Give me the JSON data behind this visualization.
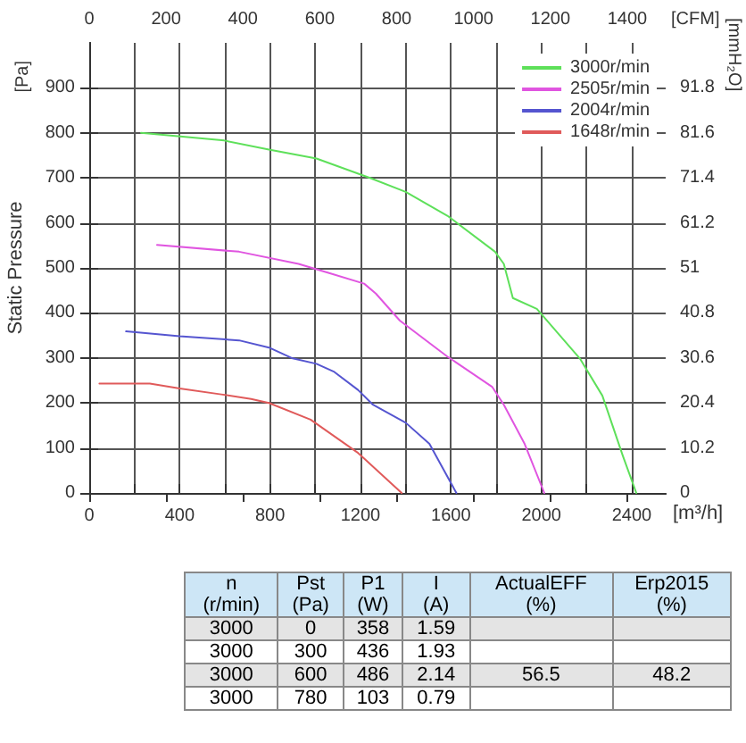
{
  "chart_data": [
    {
      "type": "line",
      "xlabel": "[m³/h]",
      "ylabel": "Static Pressure",
      "y2label": "[mmH₂O]",
      "x2label": "[CFM]",
      "annotations": [
        "[Pa]"
      ],
      "xlim": [
        0,
        2550
      ],
      "xticks": [
        0,
        {
          "value": 200,
          "label": null
        },
        400,
        {
          "value": 600,
          "label": null
        },
        800,
        {
          "value": 1000,
          "label": null
        },
        1200,
        {
          "value": 1400,
          "label": null
        },
        1600,
        {
          "value": 1800,
          "label": null
        },
        2000,
        {
          "value": 2200,
          "label": null
        },
        2400
      ],
      "x2lim": [
        0,
        1500
      ],
      "x2ticks": [
        0,
        200,
        400,
        600,
        800,
        1000,
        1200,
        1400
      ],
      "ylim": [
        0,
        1000
      ],
      "yticks": [
        0,
        100,
        200,
        300,
        400,
        500,
        600,
        700,
        800,
        900
      ],
      "y2lim": [
        0,
        102
      ],
      "y2ticks": [
        0,
        10.2,
        20.4,
        30.6,
        40.8,
        51,
        61.2,
        71.4,
        81.6,
        91.8
      ],
      "grid": true,
      "legend": "top right",
      "marker": "none",
      "line_style": "solid",
      "series": [
        {
          "name": "3000r/min",
          "color": "#5ee05a",
          "x": [
            229,
            597,
            795,
            1005,
            1242,
            1400,
            1584,
            1795,
            1834,
            1874,
            1980,
            2170,
            2270,
            2360,
            2420
          ],
          "values": [
            800,
            783,
            763,
            743,
            700,
            669,
            616,
            536,
            509,
            433,
            409,
            299,
            216,
            83,
            0
          ]
        },
        {
          "name": "2505r/min",
          "color": "#e055e0",
          "x": [
            300,
            663,
            926,
            1058,
            1216,
            1268,
            1374,
            1584,
            1782,
            1834,
            1926,
            2013
          ],
          "values": [
            551,
            536,
            509,
            489,
            465,
            443,
            383,
            303,
            236,
            196,
            109,
            0
          ]
        },
        {
          "name": "2004r/min",
          "color": "#5555d0",
          "x": [
            163,
            400,
            663,
            795,
            900,
            1005,
            1084,
            1189,
            1255,
            1400,
            1505,
            1624
          ],
          "values": [
            359,
            348,
            339,
            323,
            299,
            287,
            269,
            229,
            196,
            156,
            109,
            0
          ]
        },
        {
          "name": "1648r/min",
          "color": "#e05a5a",
          "x": [
            45,
            268,
            400,
            584,
            716,
            795,
            979,
            1189,
            1382
          ],
          "values": [
            243,
            243,
            232,
            219,
            209,
            200,
            163,
            89,
            0
          ]
        }
      ]
    },
    {
      "type": "other",
      "categories": [
        "n\n(r/min)",
        "Pst\n(Pa)",
        "P1\n(W)",
        "I\n(A)",
        "ActualEFF\n(%)",
        "Erp2015\n(%)"
      ],
      "cells": [
        [
          "3000",
          "0",
          "358",
          "1.59",
          null,
          null
        ],
        [
          "3000",
          "300",
          "436",
          "1.93",
          null,
          null
        ],
        [
          "3000",
          "600",
          "486",
          "2.14",
          "56.5",
          "48.2"
        ],
        [
          "3000",
          "780",
          "103",
          "0.79",
          null,
          null
        ]
      ]
    }
  ]
}
